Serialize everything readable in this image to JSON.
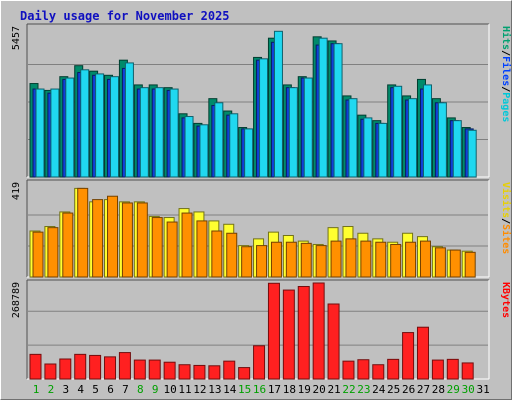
{
  "title": "Daily usage for November 2025",
  "chart_data": [
    {
      "type": "bar",
      "panel": "top",
      "max_label": "5457",
      "legend": [
        "Pages",
        "Files",
        "Hits"
      ],
      "legend_colors": [
        "#00c8d8",
        "#0040ff",
        "#00a070"
      ],
      "categories": [
        "1",
        "2",
        "3",
        "4",
        "5",
        "6",
        "7",
        "8",
        "9",
        "10",
        "11",
        "12",
        "13",
        "14",
        "15",
        "16",
        "17",
        "18",
        "19",
        "20",
        "21",
        "22",
        "23",
        "24",
        "25",
        "26",
        "27",
        "28",
        "29",
        "30",
        "31"
      ],
      "series": [
        {
          "name": "Hits",
          "color": "#008a6a",
          "values": [
            3400,
            3150,
            3650,
            4050,
            3850,
            3700,
            4250,
            3350,
            3350,
            3250,
            2300,
            1950,
            2850,
            2400,
            1800,
            4350,
            5050,
            3350,
            3650,
            5100,
            4950,
            2950,
            2250,
            2050,
            3350,
            2950,
            3550,
            2850,
            2150,
            1800,
            0
          ]
        },
        {
          "name": "Files",
          "color": "#1040d8",
          "values": [
            3200,
            3050,
            3550,
            3800,
            3700,
            3550,
            3950,
            3200,
            3200,
            3150,
            2150,
            1850,
            2600,
            2250,
            1750,
            4250,
            4900,
            3250,
            3600,
            4800,
            4850,
            2800,
            2100,
            1950,
            3250,
            2800,
            3200,
            2700,
            2050,
            1750,
            0
          ]
        },
        {
          "name": "Pages",
          "color": "#20d8f0",
          "values": [
            3200,
            3200,
            3600,
            3900,
            3750,
            3650,
            4150,
            3250,
            3250,
            3200,
            2200,
            1900,
            2700,
            2300,
            1750,
            4300,
            5300,
            3250,
            3600,
            5050,
            4850,
            2850,
            2150,
            1950,
            3300,
            2850,
            3350,
            2700,
            2050,
            1700,
            0
          ]
        }
      ]
    },
    {
      "type": "bar",
      "panel": "middle",
      "max_label": "419",
      "legend": [
        "Sites",
        "Visits"
      ],
      "legend_colors": [
        "#ff8c00",
        "#e8d000"
      ],
      "categories": [
        "1",
        "2",
        "3",
        "4",
        "5",
        "6",
        "7",
        "8",
        "9",
        "10",
        "11",
        "12",
        "13",
        "14",
        "15",
        "16",
        "17",
        "18",
        "19",
        "20",
        "21",
        "22",
        "23",
        "24",
        "25",
        "26",
        "27",
        "28",
        "29",
        "30",
        "31"
      ],
      "series": [
        {
          "name": "Visits",
          "color": "#ffff30",
          "values": [
            205,
            225,
            290,
            395,
            335,
            345,
            335,
            335,
            270,
            265,
            305,
            290,
            250,
            235,
            140,
            170,
            200,
            185,
            160,
            145,
            220,
            225,
            195,
            170,
            155,
            195,
            180,
            135,
            120,
            115,
            0
          ]
        },
        {
          "name": "Sites",
          "color": "#ff9000",
          "values": [
            200,
            220,
            285,
            395,
            345,
            360,
            330,
            330,
            265,
            245,
            285,
            250,
            205,
            195,
            135,
            140,
            155,
            155,
            150,
            140,
            160,
            170,
            160,
            155,
            145,
            155,
            160,
            130,
            120,
            110,
            0
          ]
        }
      ]
    },
    {
      "type": "bar",
      "panel": "bottom",
      "max_label": "268789",
      "legend": [
        "KBytes"
      ],
      "legend_colors": [
        "#ff0000"
      ],
      "categories": [
        "1",
        "2",
        "3",
        "4",
        "5",
        "6",
        "7",
        "8",
        "9",
        "10",
        "11",
        "12",
        "13",
        "14",
        "15",
        "16",
        "17",
        "18",
        "19",
        "20",
        "21",
        "22",
        "23",
        "24",
        "25",
        "26",
        "27",
        "28",
        "29",
        "30",
        "31"
      ],
      "series": [
        {
          "name": "KBytes",
          "color": "#ff2020",
          "values": [
            69000,
            42000,
            56000,
            69000,
            66000,
            62000,
            74000,
            53000,
            53000,
            47000,
            40000,
            38000,
            37000,
            50000,
            32000,
            93000,
            268000,
            249000,
            259000,
            275000,
            210000,
            50000,
            54000,
            40000,
            55000,
            130000,
            145000,
            53000,
            55000,
            45000,
            0
          ]
        }
      ]
    }
  ]
}
